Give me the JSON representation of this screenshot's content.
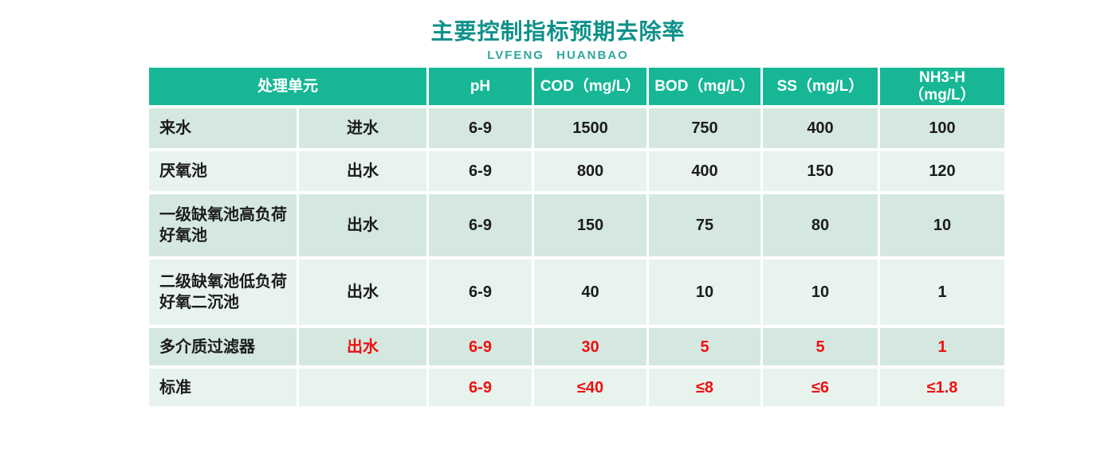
{
  "colors": {
    "title_teal": "#0f918a",
    "subtitle_teal": "#2fa6a0",
    "header_bg": "#17b795",
    "header_text": "#ffffff",
    "row_odd_bg": "#d5e8e0",
    "row_even_bg": "#e8f3ee",
    "body_text": "#1c1c1c",
    "highlight_red": "#ee1111"
  },
  "chart_data": {
    "type": "table",
    "title": "主要控制指标预期去除率",
    "subtitle": "LVFENG HUANBAO",
    "headers": {
      "unit": "处理单元",
      "ph": "pH",
      "cod": "COD（mg/L）",
      "bod": "BOD（mg/L）",
      "ss": "SS（mg/L）",
      "nh3_line1": "NH3-H",
      "nh3_line2": "（mg/L）"
    },
    "rows": [
      {
        "unit": "来水",
        "flow": "进水",
        "ph": "6-9",
        "cod": "1500",
        "bod": "750",
        "ss": "400",
        "nh3": "100",
        "highlight": false
      },
      {
        "unit": "厌氧池",
        "flow": "出水",
        "ph": "6-9",
        "cod": "800",
        "bod": "400",
        "ss": "150",
        "nh3": "120",
        "highlight": false
      },
      {
        "unit": "一级缺氧池高负荷好氧池",
        "flow": "出水",
        "ph": "6-9",
        "cod": "150",
        "bod": "75",
        "ss": "80",
        "nh3": "10",
        "highlight": false
      },
      {
        "unit": "二级缺氧池低负荷好氧二沉池",
        "flow": "出水",
        "ph": "6-9",
        "cod": "40",
        "bod": "10",
        "ss": "10",
        "nh3": "1",
        "highlight": false
      },
      {
        "unit": "多介质过滤器",
        "flow": "出水",
        "ph": "6-9",
        "cod": "30",
        "bod": "5",
        "ss": "5",
        "nh3": "1",
        "highlight": true
      },
      {
        "unit": "标准",
        "flow": "",
        "ph": "6-9",
        "cod": "≤40",
        "bod": "≤8",
        "ss": "≤6",
        "nh3": "≤1.8",
        "highlight": true
      }
    ]
  }
}
